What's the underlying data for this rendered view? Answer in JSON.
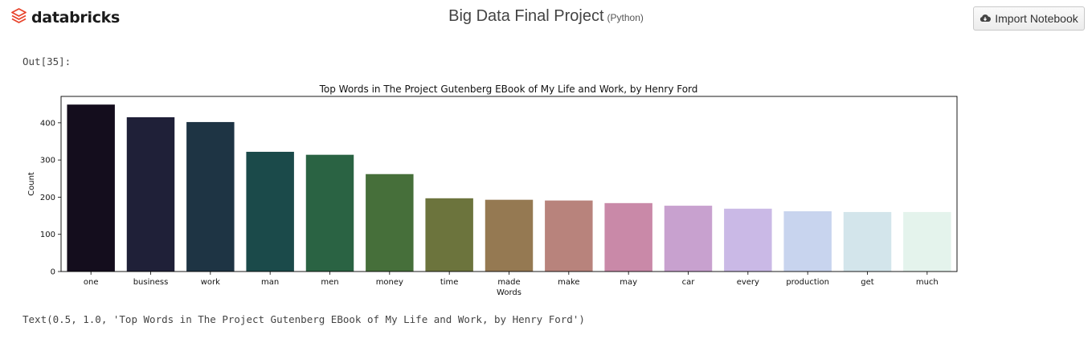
{
  "header": {
    "logo_text": "databricks",
    "logo_icon": "databricks-stack-icon",
    "notebook_title": "Big Data Final Project",
    "notebook_language": "(Python)",
    "import_button_label": "Import Notebook",
    "import_button_icon": "cloud-download-icon"
  },
  "cell": {
    "out_label": "Out[35]:",
    "text_output": "Text(0.5, 1.0, 'Top Words in The Project Gutenberg EBook of My Life and Work, by Henry Ford')"
  },
  "colors": {
    "brand_red": "#e8442c",
    "bars": [
      "#140d1d",
      "#1f2038",
      "#1e3444",
      "#1b4a4a",
      "#2a6343",
      "#466f3a",
      "#6c743d",
      "#957952",
      "#b8837c",
      "#c989a8",
      "#c8a1cf",
      "#cab9e6",
      "#c8d4ee",
      "#d3e5eb",
      "#e4f3ec"
    ]
  },
  "chart_data": {
    "type": "bar",
    "title": "Top Words in The Project Gutenberg EBook of My Life and Work, by Henry Ford",
    "xlabel": "Words",
    "ylabel": "Count",
    "categories": [
      "one",
      "business",
      "work",
      "man",
      "men",
      "money",
      "time",
      "made",
      "make",
      "may",
      "car",
      "every",
      "production",
      "get",
      "much"
    ],
    "values": [
      449,
      415,
      402,
      322,
      314,
      262,
      197,
      193,
      191,
      184,
      177,
      169,
      162,
      160,
      160
    ],
    "yticks": [
      0,
      100,
      200,
      300,
      400
    ],
    "ylim": [
      0,
      471
    ],
    "grid": false,
    "legend": "none"
  }
}
